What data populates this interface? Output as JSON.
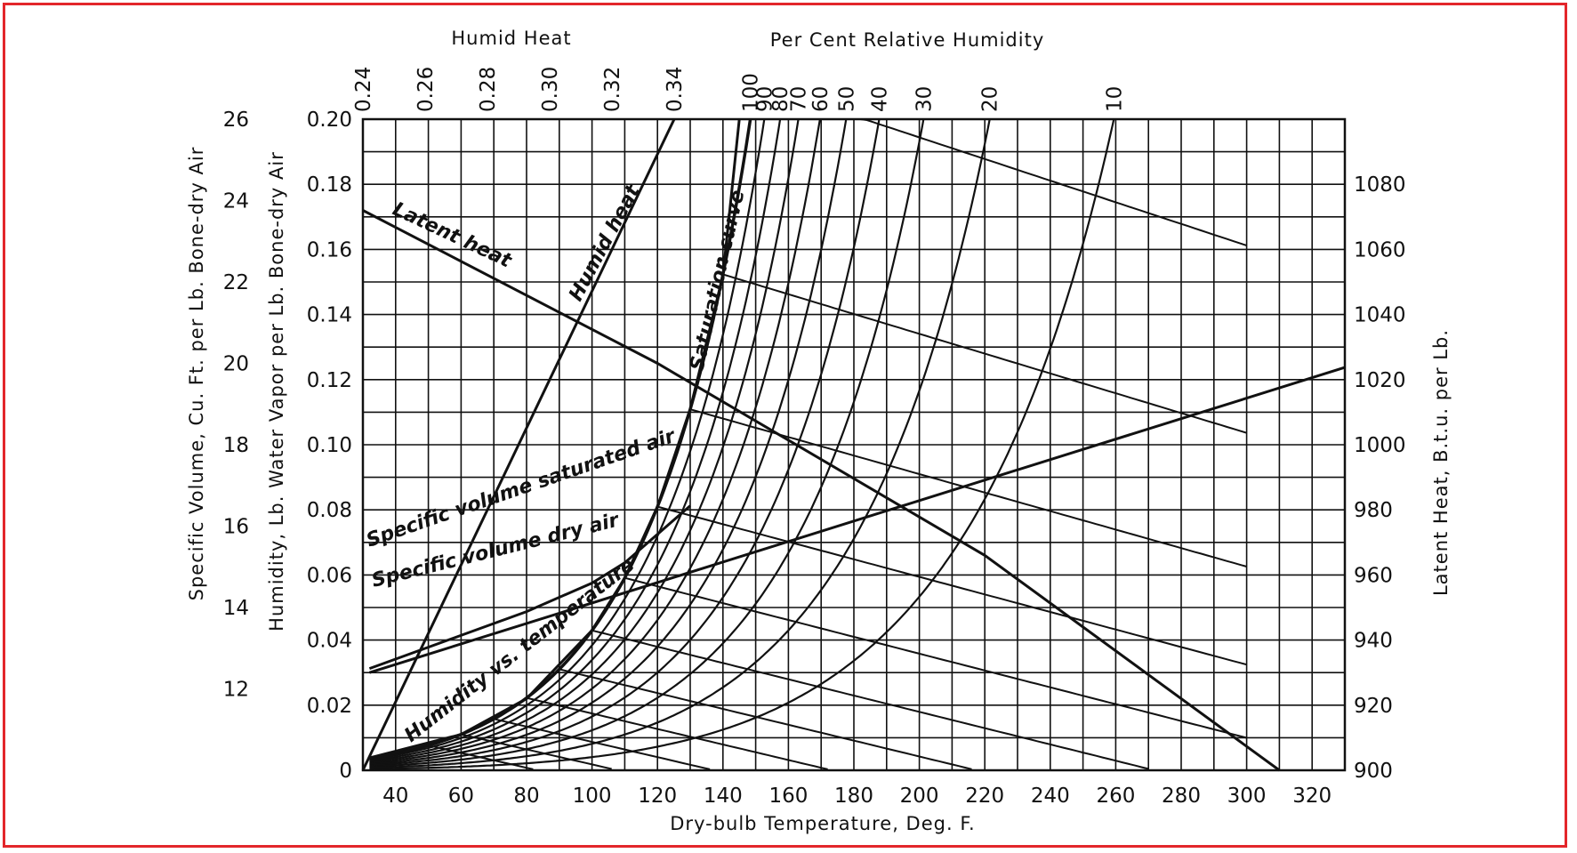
{
  "chart_data": {
    "type": "line",
    "title": "",
    "colors": {
      "ink": "#111111",
      "frame": "#e3262b",
      "background": "#ffffff"
    },
    "grid": true,
    "axes": {
      "x_bottom": {
        "label": "Dry-bulb Temperature, Deg. F.",
        "range": [
          30,
          330
        ],
        "ticks": [
          "40",
          "60",
          "80",
          "100",
          "120",
          "140",
          "160",
          "180",
          "200",
          "220",
          "240",
          "260",
          "280",
          "300",
          "320"
        ]
      },
      "y_humidity": {
        "label": "Humidity, Lb. Water Vapor per Lb. Bone-dry Air",
        "range": [
          0,
          0.2
        ],
        "ticks": [
          "0",
          "0.02",
          "0.04",
          "0.06",
          "0.08",
          "0.10",
          "0.12",
          "0.14",
          "0.16",
          "0.18",
          "0.20"
        ]
      },
      "y_specific_volume": {
        "label": "Specific Volume, Cu. Ft. per Lb. Bone-dry Air",
        "range": [
          10,
          26
        ],
        "ticks": [
          "12",
          "14",
          "16",
          "18",
          "20",
          "22",
          "24",
          "26"
        ]
      },
      "y_latent_heat": {
        "label": "Latent Heat, B.t.u. per Lb.",
        "range": [
          900,
          1100
        ],
        "ticks": [
          "900",
          "920",
          "940",
          "960",
          "980",
          "1000",
          "1020",
          "1040",
          "1060",
          "1080"
        ]
      },
      "x_top_humid_heat": {
        "label": "Humid Heat",
        "ticks": [
          "0.24",
          "0.26",
          "0.28",
          "0.30",
          "0.32",
          "0.34"
        ]
      },
      "x_top_relative_humidity": {
        "label": "Per Cent  Relative  Humidity",
        "ticks": [
          "100",
          "90",
          "80",
          "70",
          "60",
          "50",
          "40",
          "30",
          "20",
          "10"
        ]
      }
    },
    "curve_labels": [
      "Latent heat",
      "Humid heat",
      "Saturation curve",
      "Specific volume saturated air",
      "Specific  volume dry air",
      "Humidity vs. temperature"
    ],
    "relative_humidity_percent": [
      100,
      90,
      80,
      70,
      60,
      50,
      40,
      30,
      20,
      10
    ],
    "series": [
      {
        "name": "Latent heat",
        "axis": "latent_heat",
        "x": [
          30,
          120,
          220,
          310
        ],
        "y": [
          1072,
          1025,
          966,
          900
        ]
      },
      {
        "name": "Humid heat",
        "axis": "humid_heat",
        "humid_heat": [
          0.24,
          0.34
        ],
        "humidity": [
          0,
          0.2
        ]
      },
      {
        "name": "Specific volume dry air",
        "axis": "specific_volume",
        "x": [
          32,
          330
        ],
        "y": [
          12.4,
          19.9
        ]
      },
      {
        "name": "Specific volume saturated air",
        "axis": "specific_volume",
        "x": [
          32,
          80,
          100,
          110,
          120,
          130
        ],
        "y": [
          12.5,
          13.9,
          14.6,
          15.1,
          15.8,
          16.5
        ]
      },
      {
        "name": "Humidity vs. temperature (saturation curve)",
        "axis": "humidity",
        "x": [
          32,
          60,
          80,
          100,
          110,
          120,
          130,
          140,
          145
        ],
        "y": [
          0.0038,
          0.011,
          0.022,
          0.043,
          0.059,
          0.081,
          0.111,
          0.152,
          0.2
        ]
      }
    ],
    "adiabatic_lines_start_temp_F": [
      20,
      50,
      60,
      70,
      80,
      90,
      100,
      110,
      120,
      130,
      140,
      150
    ]
  }
}
